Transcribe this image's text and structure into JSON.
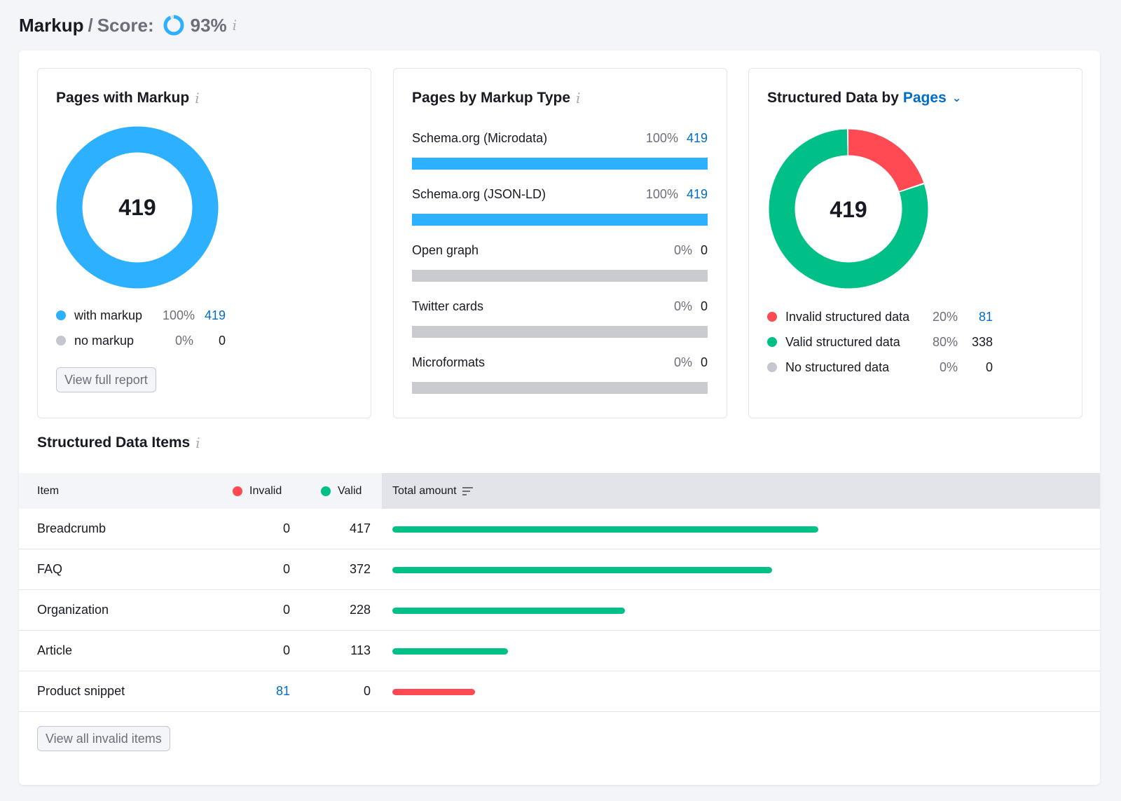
{
  "header": {
    "title": "Markup",
    "separator": "/",
    "score_label": "Score:",
    "score_value": "93%",
    "score_fraction": 0.93
  },
  "widgets": {
    "pages_with_markup": {
      "title": "Pages with Markup",
      "center_value": "419",
      "legend": [
        {
          "label": "with markup",
          "pct": "100%",
          "count": "419",
          "color": "#2cb0ff",
          "link": true
        },
        {
          "label": "no markup",
          "pct": "0%",
          "count": "0",
          "color": "#c4c7cf",
          "link": false
        }
      ],
      "button": "View full report"
    },
    "pages_by_type": {
      "title": "Pages by Markup Type",
      "rows": [
        {
          "label": "Schema.org (Microdata)",
          "pct": "100%",
          "count": "419",
          "fraction": 1.0,
          "link": true
        },
        {
          "label": "Schema.org (JSON-LD)",
          "pct": "100%",
          "count": "419",
          "fraction": 1.0,
          "link": true
        },
        {
          "label": "Open graph",
          "pct": "0%",
          "count": "0",
          "fraction": 0,
          "link": false
        },
        {
          "label": "Twitter cards",
          "pct": "0%",
          "count": "0",
          "fraction": 0,
          "link": false
        },
        {
          "label": "Microformats",
          "pct": "0%",
          "count": "0",
          "fraction": 0,
          "link": false
        }
      ]
    },
    "structured_data": {
      "title_prefix": "Structured Data by",
      "title_link": "Pages",
      "center_value": "419",
      "legend": [
        {
          "label": "Invalid structured data",
          "pct": "20%",
          "count": "81",
          "color": "#ff4953",
          "link": true,
          "fraction": 0.2
        },
        {
          "label": "Valid structured data",
          "pct": "80%",
          "count": "338",
          "color": "#00c087",
          "link": false,
          "fraction": 0.8
        },
        {
          "label": "No structured data",
          "pct": "0%",
          "count": "0",
          "color": "#c4c7cf",
          "link": false,
          "fraction": 0
        }
      ]
    }
  },
  "items_section": {
    "title": "Structured Data Items",
    "columns": {
      "item": "Item",
      "invalid": "Invalid",
      "valid": "Valid",
      "total": "Total amount"
    },
    "rows": [
      {
        "item": "Breadcrumb",
        "invalid": "0",
        "valid": "417",
        "total": 417,
        "status": "valid",
        "invalid_link": false
      },
      {
        "item": "FAQ",
        "invalid": "0",
        "valid": "372",
        "total": 372,
        "status": "valid",
        "invalid_link": false
      },
      {
        "item": "Organization",
        "invalid": "0",
        "valid": "228",
        "total": 228,
        "status": "valid",
        "invalid_link": false
      },
      {
        "item": "Article",
        "invalid": "0",
        "valid": "113",
        "total": 113,
        "status": "valid",
        "invalid_link": false
      },
      {
        "item": "Product snippet",
        "invalid": "81",
        "valid": "0",
        "total": 81,
        "status": "invalid",
        "invalid_link": true
      }
    ],
    "button": "View all invalid items"
  },
  "colors": {
    "blue": "#2cb0ff",
    "green": "#00c087",
    "red": "#ff4953",
    "gray": "#c9cbd1",
    "link": "#006dca"
  }
}
